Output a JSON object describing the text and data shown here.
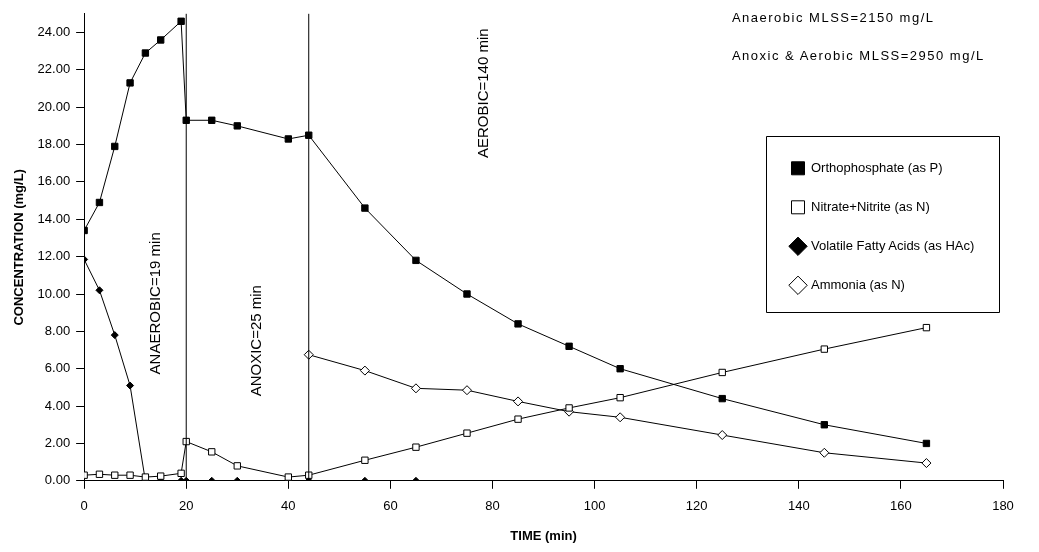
{
  "chart_data": {
    "type": "line",
    "xlabel": "TIME (min)",
    "ylabel": "CONCENTRATION (mg/L)",
    "xlim": [
      0,
      180
    ],
    "xticks": [
      0,
      20,
      40,
      60,
      80,
      100,
      120,
      140,
      160,
      180
    ],
    "ylim": [
      0,
      25
    ],
    "yticks": [
      {
        "value": 0,
        "label": "0.00"
      },
      {
        "value": 2,
        "label": "2.00"
      },
      {
        "value": 4,
        "label": "4.00"
      },
      {
        "value": 6,
        "label": "6.00"
      },
      {
        "value": 8,
        "label": "8.00"
      },
      {
        "value": 10,
        "label": "10.00"
      },
      {
        "value": 12,
        "label": "12.00"
      },
      {
        "value": 14,
        "label": "14.00"
      },
      {
        "value": 16,
        "label": "16.00"
      },
      {
        "value": 18,
        "label": "18.00"
      },
      {
        "value": 20,
        "label": "20.00"
      },
      {
        "value": 22,
        "label": "22.00"
      },
      {
        "value": 24,
        "label": "24.00"
      }
    ],
    "grid": false,
    "legend": "top right",
    "line_style": "solid",
    "series": [
      {
        "name": "Orthophosphate (as P)",
        "color": "#000000",
        "marker": "square",
        "x": [
          0,
          3,
          6,
          9,
          12,
          15,
          19,
          20,
          25,
          30,
          40,
          44,
          55,
          65,
          75,
          85,
          95,
          105,
          125,
          145,
          165
        ],
        "values": [
          13.4,
          14.9,
          17.9,
          21.3,
          22.9,
          23.6,
          24.6,
          19.3,
          19.3,
          19.0,
          18.3,
          18.5,
          14.6,
          11.8,
          10.0,
          8.4,
          7.2,
          6.0,
          4.4,
          3.0,
          2.0
        ]
      },
      {
        "name": "Nitrate+Nitrite (as N)",
        "color": "#000000",
        "colors": [
          "#ffffff",
          "#ffffff",
          "#ffffff",
          "#ffffff",
          "#ffffff",
          "#ffffff",
          "#ffffff",
          "#ffffff",
          "#ffffff",
          "#ffffff",
          "#ffffff",
          "#ffffff",
          "#ffffff",
          "#ffffff",
          "#ffffff",
          "#ffffff",
          "#ffffff",
          "#ffffff",
          "#ffffff",
          "#ffffff",
          "#ffffff"
        ],
        "marker": "square",
        "x": [
          0,
          3,
          6,
          9,
          12,
          15,
          19,
          20,
          25,
          30,
          40,
          44,
          55,
          65,
          75,
          85,
          95,
          105,
          125,
          145,
          165
        ],
        "values": [
          0.3,
          0.35,
          0.3,
          0.3,
          0.2,
          0.25,
          0.4,
          2.1,
          1.55,
          0.8,
          0.2,
          0.3,
          1.1,
          1.8,
          2.55,
          3.3,
          3.9,
          4.45,
          5.8,
          7.05,
          8.2
        ]
      },
      {
        "name": "Volatile Fatty Acids (as HAc)",
        "color": "#000000",
        "marker": "diamond",
        "x": [
          0,
          3,
          6,
          9,
          12,
          15,
          19,
          20,
          25,
          30,
          40,
          44,
          55,
          65
        ],
        "values": [
          11.85,
          10.2,
          7.8,
          5.1,
          0,
          0,
          0,
          0,
          0,
          0,
          0,
          0,
          0,
          0
        ]
      },
      {
        "name": "Ammonia (as N)",
        "color": "#000000",
        "colors": [
          "#ffffff",
          "#ffffff",
          "#ffffff",
          "#ffffff",
          "#ffffff",
          "#ffffff",
          "#ffffff",
          "#ffffff",
          "#ffffff",
          "#ffffff"
        ],
        "marker": "diamond",
        "x": [
          44,
          55,
          65,
          75,
          85,
          95,
          105,
          125,
          145,
          165
        ],
        "values": [
          6.75,
          5.9,
          4.95,
          4.85,
          4.25,
          3.7,
          3.4,
          2.45,
          1.5,
          0.95
        ]
      }
    ],
    "ref_lines": [
      {
        "axis": "x",
        "value": 20,
        "color": "#000000"
      },
      {
        "axis": "x",
        "value": 44,
        "color": "#000000"
      }
    ],
    "annotations": [
      "ANAEROBIC=19 min",
      "ANOXIC=25 min",
      "AEROBIC=140 min",
      "Anaerobic MLSS=2150 mg/L",
      "Anoxic & Aerobic MLSS=2950 mg/L"
    ]
  }
}
